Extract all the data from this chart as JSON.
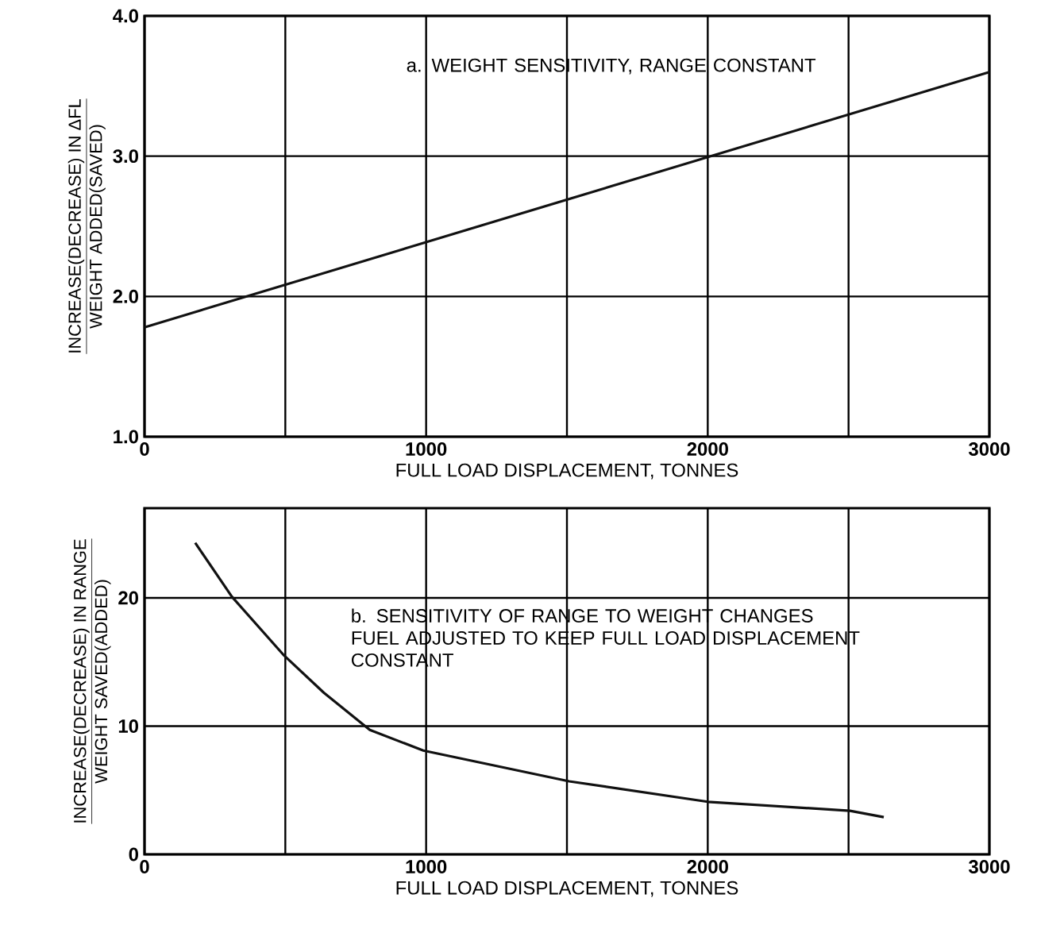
{
  "chart_data": [
    {
      "type": "line",
      "x": [
        0,
        3000
      ],
      "values": [
        1.78,
        3.6
      ],
      "color": "#111111",
      "xlabel": "FULL LOAD DISPLACEMENT, TONNES",
      "ylabel": [
        "INCREASE(DECREASE) IN ΔFL",
        "WEIGHT ADDED(SAVED)"
      ],
      "annotations": [
        "a. WEIGHT SENSITIVITY, RANGE CONSTANT"
      ],
      "xlim": [
        0,
        3000
      ],
      "ylim": [
        1,
        4
      ],
      "xticks": [
        0,
        {
          "value": 500,
          "label": null
        },
        1000,
        {
          "value": 1500,
          "label": null
        },
        2000,
        {
          "value": 2500,
          "label": null
        },
        3000
      ],
      "yticks": [
        {
          "value": 1,
          "label": "1.0"
        },
        {
          "value": 2,
          "label": "2.0"
        },
        {
          "value": 3,
          "label": "3.0"
        },
        {
          "value": 4,
          "label": "4.0"
        }
      ],
      "grid": true,
      "marker": "none",
      "line_style": "solid"
    },
    {
      "type": "line",
      "x": [
        180,
        310,
        496,
        637,
        800,
        990,
        1508,
        2000,
        2505,
        2625
      ],
      "values": [
        24.3,
        20.1,
        15.5,
        12.6,
        9.7,
        8.1,
        5.7,
        4.1,
        3.4,
        2.9
      ],
      "color": "#111111",
      "xlabel": "FULL LOAD DISPLACEMENT, TONNES",
      "ylabel": [
        "INCREASE(DECREASE) IN RANGE",
        "WEIGHT SAVED(ADDED)"
      ],
      "annotations": [
        "b. SENSITIVITY OF RANGE TO WEIGHT CHANGES FUEL ADJUSTED TO KEEP FULL LOAD DISPLACEMENT CONSTANT"
      ],
      "xlim": [
        0,
        3000
      ],
      "ylim": [
        0,
        27
      ],
      "xticks": [
        0,
        {
          "value": 500,
          "label": null
        },
        1000,
        {
          "value": 1500,
          "label": null
        },
        2000,
        {
          "value": 2500,
          "label": null
        },
        3000
      ],
      "yticks": [
        0,
        10,
        20
      ],
      "grid": true,
      "marker": "none",
      "line_style": "solid"
    }
  ]
}
